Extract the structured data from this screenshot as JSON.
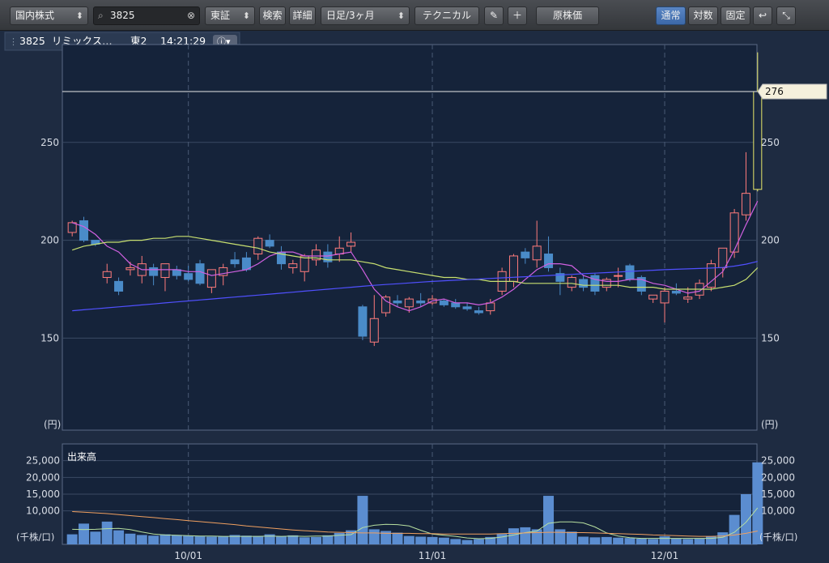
{
  "toolbar": {
    "market_select": "国内株式",
    "search_value": "3825",
    "exchange_select": "東証",
    "search_button": "検索",
    "detail_button": "詳細",
    "period_select": "日足/3ヶ月",
    "technical_button": "テクニカル",
    "pen_icon": "pencil-icon",
    "plus_icon": "plus-icon",
    "original_price_button": "原株価",
    "mode_normal": "通常",
    "mode_log": "対数",
    "mode_fixed": "固定",
    "undo_icon": "undo-icon",
    "collapse_icon": "collapse-icon"
  },
  "info_bar": {
    "code": "3825",
    "name": "リミックス…",
    "market": "東2",
    "time": "14:21:29",
    "info_icon": "info-icon"
  },
  "price_chart": {
    "y_ticks": [
      "250",
      "200",
      "150"
    ],
    "y_tick_values": [
      250,
      200,
      150
    ],
    "y_unit": "(円)",
    "current_price_label": "276",
    "current_price": 276,
    "ylim": [
      103,
      300
    ]
  },
  "volume_chart": {
    "title": "出来高",
    "y_ticks": [
      "25,000",
      "20,000",
      "15,000",
      "10,000"
    ],
    "y_tick_values": [
      25000,
      20000,
      15000,
      10000
    ],
    "y_unit": "(千株/口)",
    "ylim": [
      0,
      30000
    ]
  },
  "x_labels": [
    {
      "label": "10/01",
      "index": 10
    },
    {
      "label": "11/01",
      "index": 31
    },
    {
      "label": "12/01",
      "index": 51
    }
  ],
  "colors": {
    "up_candle": "#ff7b7b",
    "down_candle": "#4a8bc8",
    "latest_candle": "#e8e86a",
    "ma_short": "#d060e0",
    "ma_mid": "#c8e070",
    "ma_long": "#5050ff",
    "vol_ma_short": "#b8e0a0",
    "vol_ma_long": "#f0a060",
    "volume_bar": "#5b8dd0"
  },
  "chart_data": {
    "type": "candlestick",
    "series": [
      {
        "name": "OHLC",
        "values": [
          [
            204,
            210,
            202,
            209
          ],
          [
            210,
            212,
            199,
            200
          ],
          [
            200,
            200,
            197,
            198
          ],
          [
            181,
            188,
            178,
            184
          ],
          [
            179,
            181,
            172,
            174
          ],
          [
            185,
            189,
            182,
            186
          ],
          [
            182,
            192,
            178,
            188
          ],
          [
            186,
            188,
            177,
            182
          ],
          [
            181,
            187,
            174,
            188
          ],
          [
            185,
            187,
            180,
            182
          ],
          [
            183,
            187,
            179,
            180
          ],
          [
            188,
            190,
            177,
            178
          ],
          [
            176,
            184,
            173,
            185
          ],
          [
            182,
            188,
            177,
            186
          ],
          [
            190,
            194,
            186,
            188
          ],
          [
            191,
            194,
            184,
            185
          ],
          [
            193,
            202,
            190,
            201
          ],
          [
            200,
            203,
            196,
            197
          ],
          [
            194,
            197,
            185,
            188
          ],
          [
            186,
            190,
            183,
            188
          ],
          [
            184,
            193,
            179,
            192
          ],
          [
            190,
            198,
            187,
            195
          ],
          [
            194,
            198,
            186,
            189
          ],
          [
            193,
            202,
            189,
            196
          ],
          [
            197,
            204,
            194,
            199
          ],
          [
            166,
            167,
            149,
            151
          ],
          [
            148,
            172,
            146,
            160
          ],
          [
            163,
            172,
            161,
            171
          ],
          [
            169,
            172,
            166,
            168
          ],
          [
            166,
            171,
            163,
            170
          ],
          [
            169,
            173,
            166,
            168
          ],
          [
            168,
            172,
            167,
            170
          ],
          [
            169,
            170,
            166,
            167
          ],
          [
            168,
            170,
            165,
            166
          ],
          [
            166,
            168,
            164,
            165
          ],
          [
            164,
            166,
            162,
            163
          ],
          [
            164,
            170,
            162,
            168
          ],
          [
            174,
            186,
            172,
            184
          ],
          [
            179,
            193,
            176,
            192
          ],
          [
            194,
            196,
            188,
            191
          ],
          [
            190,
            210,
            186,
            197
          ],
          [
            193,
            202,
            184,
            186
          ],
          [
            183,
            186,
            172,
            179
          ],
          [
            176,
            182,
            174,
            181
          ],
          [
            180,
            182,
            174,
            176
          ],
          [
            182,
            183,
            172,
            174
          ],
          [
            176,
            181,
            174,
            180
          ],
          [
            182,
            186,
            176,
            182
          ],
          [
            187,
            188,
            179,
            180
          ],
          [
            181,
            182,
            172,
            174
          ],
          [
            170,
            172,
            168,
            172
          ],
          [
            168,
            176,
            158,
            174
          ],
          [
            174,
            178,
            172,
            173
          ],
          [
            170,
            176,
            168,
            171
          ],
          [
            172,
            180,
            170,
            178
          ],
          [
            176,
            190,
            174,
            188
          ],
          [
            186,
            196,
            181,
            196
          ],
          [
            194,
            216,
            191,
            214
          ],
          [
            213,
            245,
            210,
            224
          ],
          [
            226,
            296,
            225,
            276
          ]
        ]
      },
      {
        "name": "MA5",
        "values": [
          209,
          207,
          203,
          197,
          194,
          188,
          185,
          185,
          185,
          185,
          184,
          184,
          182,
          183,
          184,
          185,
          188,
          192,
          194,
          194,
          192,
          192,
          192,
          193,
          194,
          185,
          175,
          169,
          166,
          164,
          166,
          169,
          170,
          168,
          168,
          167,
          168,
          171,
          175,
          180,
          185,
          188,
          188,
          187,
          182,
          180,
          179,
          179,
          180,
          180,
          178,
          177,
          175,
          173,
          174,
          179,
          184,
          195,
          208,
          220
        ]
      },
      {
        "name": "MA25",
        "values": [
          195,
          197,
          198,
          199,
          199,
          200,
          200,
          201,
          201,
          202,
          202,
          201,
          200,
          199,
          198,
          197,
          196,
          194,
          193,
          192,
          191,
          191,
          190,
          190,
          190,
          189,
          188,
          186,
          185,
          184,
          183,
          182,
          181,
          181,
          180,
          180,
          179,
          179,
          179,
          178,
          178,
          178,
          178,
          178,
          177,
          177,
          177,
          177,
          176,
          176,
          176,
          175,
          175,
          175,
          175,
          175,
          176,
          177,
          180,
          186
        ]
      },
      {
        "name": "MA75",
        "values": [
          164,
          164.5,
          165,
          165.5,
          166,
          166.5,
          167,
          167.5,
          168,
          168.5,
          169,
          169.5,
          170,
          170.5,
          171,
          171.5,
          172,
          172.5,
          173,
          173.5,
          174,
          174.5,
          175,
          175.5,
          176,
          176.5,
          177,
          177.4,
          177.8,
          178.2,
          178.6,
          179,
          179.3,
          179.6,
          179.9,
          180.2,
          180.5,
          180.8,
          181.1,
          181.4,
          181.7,
          182,
          182.3,
          182.6,
          182.9,
          183.2,
          183.5,
          183.8,
          184.1,
          184.4,
          184.7,
          185,
          185.2,
          185.4,
          185.6,
          185.8,
          186.1,
          186.8,
          187.8,
          189.2
        ]
      },
      {
        "name": "出来高",
        "values": [
          3000,
          6200,
          3800,
          6800,
          4200,
          3200,
          2800,
          2600,
          3000,
          2800,
          2600,
          2400,
          2300,
          2400,
          2800,
          2600,
          2500,
          3000,
          2300,
          2700,
          2100,
          2200,
          2700,
          3400,
          4200,
          14500,
          4500,
          4000,
          3500,
          2500,
          2300,
          2200,
          2000,
          1600,
          1300,
          1600,
          2200,
          3100,
          4800,
          5100,
          4500,
          14500,
          4500,
          3800,
          2300,
          2100,
          2200,
          2000,
          1900,
          1700,
          1600,
          2400,
          1700,
          1600,
          1800,
          2300,
          3600,
          8800,
          15000,
          24500
        ]
      },
      {
        "name": "出来高MA短",
        "values": [
          4500,
          4400,
          4500,
          4700,
          4800,
          4400,
          3700,
          3100,
          2800,
          2700,
          2600,
          2500,
          2500,
          2400,
          2400,
          2400,
          2400,
          2500,
          2400,
          2500,
          2400,
          2500,
          2500,
          2700,
          2900,
          5000,
          5700,
          6000,
          5900,
          5500,
          4200,
          3100,
          2700,
          2400,
          1900,
          1700,
          1800,
          2200,
          2800,
          3500,
          4000,
          6300,
          6700,
          6700,
          6400,
          5200,
          3400,
          2500,
          2000,
          1800,
          1800,
          1800,
          1800,
          1800,
          1800,
          1800,
          2100,
          3600,
          6600,
          10900
        ]
      },
      {
        "name": "出来高MA長",
        "values": [
          9800,
          9600,
          9400,
          9200,
          8900,
          8600,
          8300,
          8000,
          7700,
          7400,
          7100,
          6800,
          6500,
          6200,
          5900,
          5500,
          5200,
          4900,
          4600,
          4300,
          4100,
          3900,
          3700,
          3600,
          3500,
          3400,
          3400,
          3300,
          3300,
          3300,
          3200,
          3200,
          3100,
          3100,
          3100,
          3100,
          3100,
          3200,
          3300,
          3400,
          3500,
          3600,
          3600,
          3500,
          3500,
          3400,
          3300,
          3200,
          3100,
          3000,
          2800,
          2700,
          2600,
          2500,
          2400,
          2400,
          2500,
          2800,
          3300,
          4000
        ]
      }
    ],
    "x_tick_labels": [
      "10/01",
      "11/01",
      "12/01"
    ],
    "y_tick_labels": [
      "250",
      "200",
      "150"
    ],
    "ylim": [
      103,
      300
    ],
    "volume_ylim": [
      0,
      30000
    ],
    "grid": true
  }
}
